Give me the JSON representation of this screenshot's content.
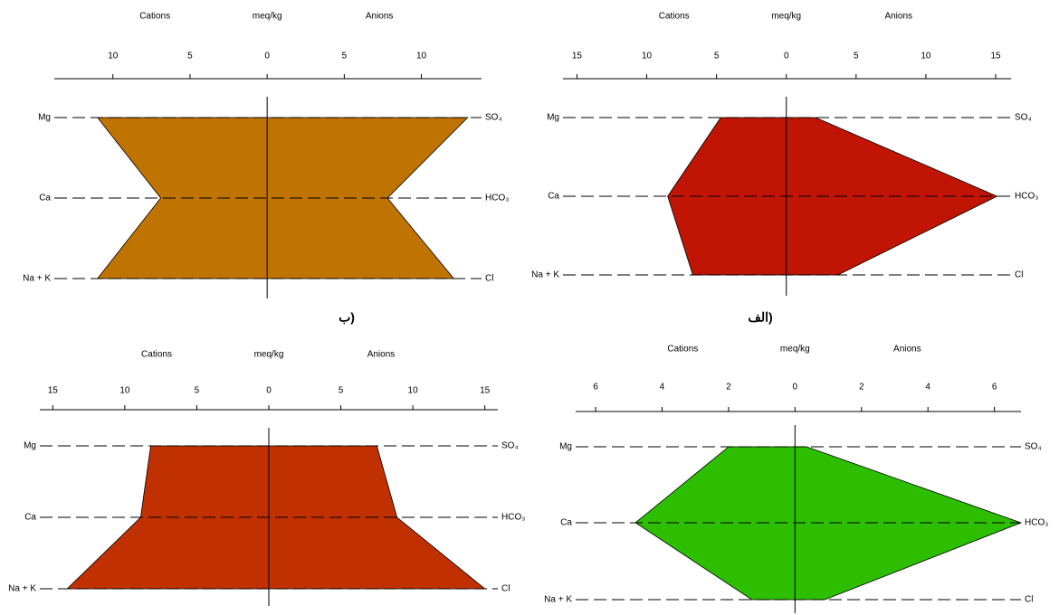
{
  "chart_data": [
    {
      "type": "stiff",
      "panel_label": "ب)",
      "header": [
        "Cations",
        "meq/kg",
        "Anions"
      ],
      "cation_labels": [
        "Mg",
        "Ca",
        "Na + K"
      ],
      "anion_labels": [
        "SO₄",
        "HCO₃",
        "Cl"
      ],
      "cations": [
        11.0,
        6.9,
        11.0
      ],
      "anions": [
        13.0,
        7.8,
        12.1
      ],
      "color": "#bf7300",
      "xlim": [
        -13.8,
        13.9
      ],
      "xticks": [
        {
          "value": -10,
          "label": "10"
        },
        {
          "value": -5,
          "label": "5"
        },
        0,
        5,
        10
      ]
    },
    {
      "type": "stiff",
      "panel_label": "الف)",
      "header": [
        "Cations",
        "meq/kg",
        "Anions"
      ],
      "cation_labels": [
        "Mg",
        "Ca",
        "Na + K"
      ],
      "anion_labels": [
        "SO₄",
        "HCO₃",
        "Cl"
      ],
      "cations": [
        4.7,
        8.5,
        6.7
      ],
      "anions": [
        2.1,
        15.1,
        3.7
      ],
      "color": "#c01505",
      "xlim": [
        -16.0,
        16.1
      ],
      "xticks": [
        {
          "value": -15,
          "label": "15"
        },
        {
          "value": -10,
          "label": "10"
        },
        {
          "value": -5,
          "label": "5"
        },
        0,
        5,
        10,
        15
      ]
    },
    {
      "type": "stiff",
      "header": [
        "Cations",
        "meq/kg",
        "Anions"
      ],
      "cation_labels": [
        "Mg",
        "Ca",
        "Na + K"
      ],
      "anion_labels": [
        "SO₄",
        "HCO₃",
        "Cl"
      ],
      "cations": [
        8.2,
        8.9,
        14.0
      ],
      "anions": [
        7.5,
        8.9,
        15.0
      ],
      "color": "#c03000",
      "xlim": [
        -15.9,
        15.9
      ],
      "xticks": [
        {
          "value": -15,
          "label": "15"
        },
        {
          "value": -10,
          "label": "10"
        },
        {
          "value": -5,
          "label": "5"
        },
        0,
        5,
        10,
        15
      ]
    },
    {
      "type": "stiff",
      "header": [
        "Cations",
        "meq/kg",
        "Anions"
      ],
      "cation_labels": [
        "Mg",
        "Ca",
        "Na + K"
      ],
      "anion_labels": [
        "SO₄",
        "HCO₃",
        "Cl"
      ],
      "cations": [
        2.0,
        4.8,
        1.3
      ],
      "anions": [
        0.35,
        6.8,
        0.9
      ],
      "color": "#2dbe00",
      "xlim": [
        -6.6,
        6.8
      ],
      "xticks": [
        {
          "value": -6,
          "label": "6"
        },
        {
          "value": -4,
          "label": "4"
        },
        {
          "value": -2,
          "label": "2"
        },
        0,
        2,
        4,
        6
      ]
    }
  ]
}
